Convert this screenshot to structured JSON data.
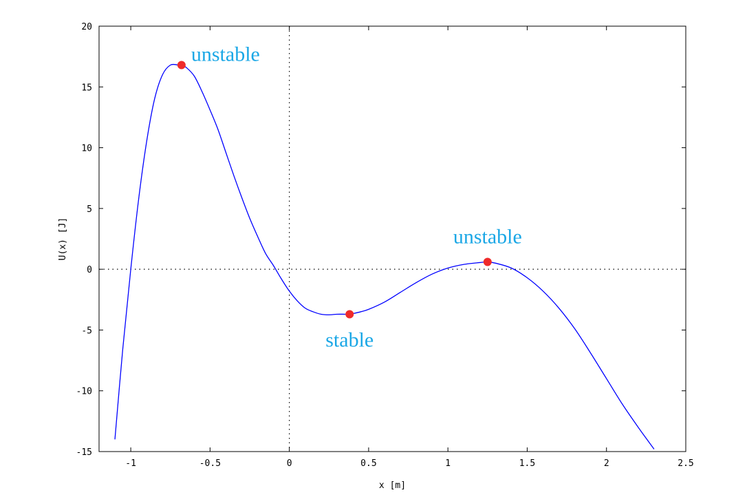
{
  "chart_data": {
    "type": "line",
    "xlabel": "x [m]",
    "ylabel": "U(x) [J]",
    "xlim": [
      -1.2,
      2.5
    ],
    "ylim": [
      -15,
      20
    ],
    "xticks": [
      -1,
      -0.5,
      0,
      0.5,
      1,
      1.5,
      2,
      2.5
    ],
    "xtick_labels": [
      "-1",
      "-0.5",
      "0",
      "0.5",
      "1",
      "1.5",
      "2",
      "2.5"
    ],
    "yticks": [
      -15,
      -10,
      -5,
      0,
      5,
      10,
      15,
      20
    ],
    "ytick_labels": [
      "-15",
      "-10",
      "-5",
      "0",
      "5",
      "10",
      "15",
      "20"
    ],
    "zero_lines": true,
    "grid": false,
    "series": [
      {
        "color": "#0000ff",
        "x": [
          -1.1,
          -1.05,
          -1.0,
          -0.95,
          -0.9,
          -0.85,
          -0.8,
          -0.75,
          -0.7,
          -0.68,
          -0.65,
          -0.6,
          -0.55,
          -0.5,
          -0.45,
          -0.4,
          -0.35,
          -0.3,
          -0.25,
          -0.2,
          -0.15,
          -0.1,
          -0.05,
          0.0,
          0.05,
          0.1,
          0.15,
          0.2,
          0.25,
          0.3,
          0.35,
          0.38,
          0.4,
          0.45,
          0.5,
          0.6,
          0.7,
          0.8,
          0.9,
          1.0,
          1.1,
          1.2,
          1.25,
          1.3,
          1.4,
          1.5,
          1.6,
          1.7,
          1.8,
          1.9,
          2.0,
          2.1,
          2.2,
          2.3
        ],
        "y": [
          -14.0,
          -6.5,
          0.0,
          5.8,
          10.5,
          14.0,
          16.0,
          16.8,
          16.8,
          16.8,
          16.6,
          15.9,
          14.6,
          13.1,
          11.5,
          9.6,
          7.7,
          5.9,
          4.2,
          2.7,
          1.3,
          0.3,
          -0.8,
          -1.8,
          -2.6,
          -3.2,
          -3.5,
          -3.7,
          -3.75,
          -3.7,
          -3.7,
          -3.7,
          -3.65,
          -3.5,
          -3.3,
          -2.7,
          -1.9,
          -1.1,
          -0.4,
          0.1,
          0.4,
          0.55,
          0.6,
          0.5,
          0.1,
          -0.7,
          -1.8,
          -3.2,
          -4.9,
          -6.9,
          -9.0,
          -11.1,
          -13.0,
          -14.8
        ]
      }
    ],
    "points": [
      {
        "x": -0.68,
        "y": 16.8,
        "label": "unstable",
        "color": "#ef2b2b"
      },
      {
        "x": 0.38,
        "y": -3.7,
        "label": "stable",
        "color": "#ef2b2b"
      },
      {
        "x": 1.25,
        "y": 0.6,
        "label": "unstable",
        "color": "#ef2b2b"
      }
    ],
    "annotation_color": "#1aa7e6"
  }
}
